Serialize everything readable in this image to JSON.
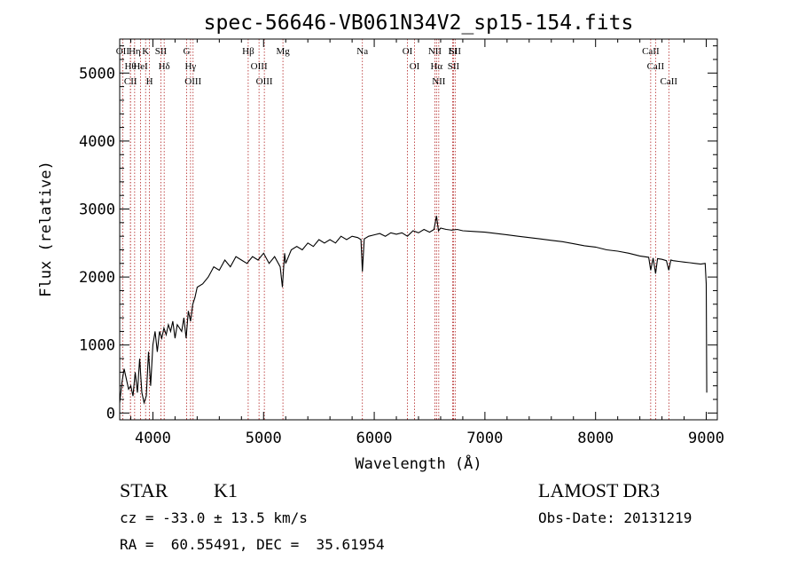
{
  "chart_data": {
    "type": "line",
    "title": "spec-56646-VB061N34V2_sp15-154.fits",
    "xlabel": "Wavelength (Å)",
    "ylabel": "Flux (relative)",
    "xlim": [
      3700,
      9100
    ],
    "ylim": [
      -100,
      5500
    ],
    "xticks": [
      4000,
      5000,
      6000,
      7000,
      8000,
      9000
    ],
    "yticks": [
      0,
      1000,
      2000,
      3000,
      4000,
      5000
    ],
    "grid": false,
    "series": [
      {
        "name": "flux",
        "x": [
          3700,
          3720,
          3740,
          3760,
          3780,
          3800,
          3820,
          3840,
          3860,
          3880,
          3900,
          3920,
          3940,
          3960,
          3980,
          4000,
          4020,
          4040,
          4060,
          4080,
          4100,
          4120,
          4140,
          4160,
          4180,
          4200,
          4220,
          4240,
          4260,
          4280,
          4300,
          4320,
          4340,
          4360,
          4380,
          4400,
          4450,
          4500,
          4550,
          4600,
          4650,
          4700,
          4750,
          4800,
          4850,
          4900,
          4950,
          5000,
          5050,
          5100,
          5150,
          5170,
          5180,
          5190,
          5200,
          5250,
          5300,
          5350,
          5400,
          5450,
          5500,
          5550,
          5600,
          5650,
          5700,
          5750,
          5800,
          5850,
          5880,
          5893,
          5910,
          5950,
          6000,
          6050,
          6100,
          6150,
          6200,
          6250,
          6300,
          6350,
          6400,
          6450,
          6500,
          6540,
          6563,
          6580,
          6600,
          6650,
          6700,
          6750,
          6800,
          6900,
          7000,
          7100,
          7200,
          7300,
          7400,
          7500,
          7600,
          7700,
          7800,
          7900,
          8000,
          8100,
          8200,
          8300,
          8400,
          8480,
          8498,
          8520,
          8542,
          8560,
          8600,
          8640,
          8662,
          8680,
          8700,
          8750,
          8800,
          8850,
          8900,
          8950,
          8990,
          9000,
          9005
        ],
        "values": [
          150,
          450,
          650,
          500,
          350,
          400,
          250,
          600,
          300,
          800,
          300,
          150,
          250,
          900,
          400,
          1000,
          1200,
          900,
          1200,
          1100,
          1250,
          1150,
          1300,
          1200,
          1350,
          1100,
          1300,
          1250,
          1200,
          1400,
          1100,
          1500,
          1350,
          1600,
          1700,
          1850,
          1900,
          2000,
          2150,
          2100,
          2250,
          2150,
          2300,
          2250,
          2200,
          2300,
          2250,
          2350,
          2200,
          2300,
          2150,
          1850,
          2100,
          2350,
          2200,
          2400,
          2450,
          2400,
          2500,
          2450,
          2550,
          2500,
          2550,
          2500,
          2600,
          2550,
          2600,
          2580,
          2550,
          2080,
          2560,
          2600,
          2620,
          2640,
          2600,
          2650,
          2630,
          2650,
          2600,
          2680,
          2650,
          2700,
          2660,
          2700,
          2900,
          2680,
          2720,
          2700,
          2690,
          2700,
          2680,
          2670,
          2660,
          2640,
          2620,
          2600,
          2580,
          2560,
          2540,
          2520,
          2490,
          2460,
          2440,
          2400,
          2380,
          2350,
          2310,
          2290,
          2100,
          2280,
          2050,
          2270,
          2260,
          2240,
          2100,
          2250,
          2240,
          2230,
          2220,
          2210,
          2200,
          2190,
          2200,
          1900,
          300
        ]
      }
    ],
    "lines": [
      {
        "label": "Hθ",
        "wave": 3797
      },
      {
        "label": "CII",
        "wave": 3798
      },
      {
        "label": "OII",
        "wave": 3727
      },
      {
        "label": "Hη",
        "wave": 3835
      },
      {
        "label": "K",
        "wave": 3934
      },
      {
        "label": "HeI",
        "wave": 3889
      },
      {
        "label": "H",
        "wave": 3969
      },
      {
        "label": "SII",
        "wave": 4072
      },
      {
        "label": "Hδ",
        "wave": 4102
      },
      {
        "label": "OIII",
        "wave": 4363
      },
      {
        "label": "Hγ",
        "wave": 4340
      },
      {
        "label": "G",
        "wave": 4305
      },
      {
        "label": "Hβ",
        "wave": 4861
      },
      {
        "label": "OIII",
        "wave": 4959
      },
      {
        "label": "OIII",
        "wave": 5007
      },
      {
        "label": "Mg",
        "wave": 5175
      },
      {
        "label": "Na",
        "wave": 5893
      },
      {
        "label": "OI",
        "wave": 6300
      },
      {
        "label": "OI",
        "wave": 6364
      },
      {
        "label": "Hα",
        "wave": 6563
      },
      {
        "label": "NII",
        "wave": 6548
      },
      {
        "label": "NII",
        "wave": 6583
      },
      {
        "label": "SII",
        "wave": 6716
      },
      {
        "label": "Li",
        "wave": 6708
      },
      {
        "label": "SII",
        "wave": 6731
      },
      {
        "label": "CaII",
        "wave": 8498
      },
      {
        "label": "CaII",
        "wave": 8542
      },
      {
        "label": "CaII",
        "wave": 8662
      }
    ]
  },
  "info": {
    "class": "STAR",
    "subclass": "K1",
    "survey": "LAMOST DR3",
    "cz": "cz = -33.0 ± 13.5 km/s",
    "obs_date": "Obs-Date: 20131219",
    "radec": "RA =  60.55491, DEC =  35.61954"
  },
  "colors": {
    "line_marker": "#b22222",
    "spectrum": "#000000"
  }
}
